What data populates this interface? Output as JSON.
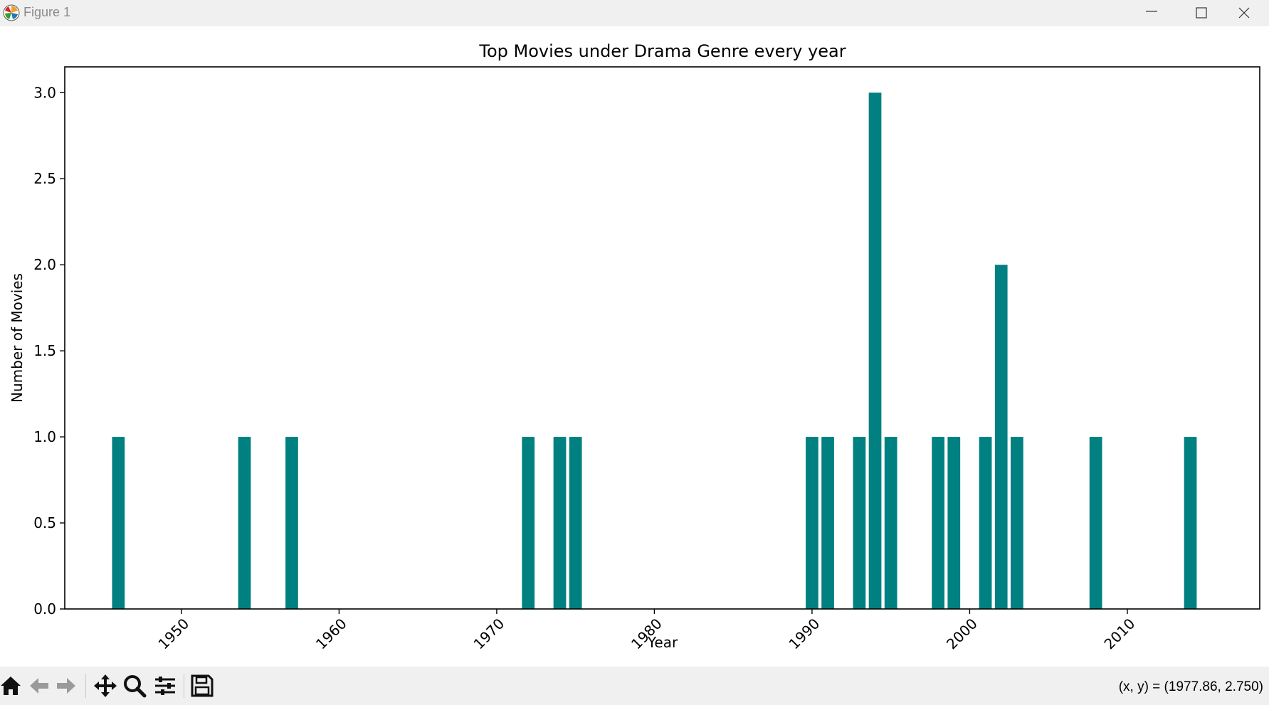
{
  "window": {
    "title": "Figure 1"
  },
  "toolbar": {
    "buttons": [
      {
        "name": "home-icon",
        "tooltip": "Home"
      },
      {
        "name": "back-icon",
        "tooltip": "Back"
      },
      {
        "name": "forward-icon",
        "tooltip": "Forward"
      },
      {
        "name": "pan-icon",
        "tooltip": "Pan"
      },
      {
        "name": "zoom-icon",
        "tooltip": "Zoom"
      },
      {
        "name": "configure-subplots-icon",
        "tooltip": "Subplots"
      },
      {
        "name": "save-icon",
        "tooltip": "Save"
      }
    ],
    "coords_label": "(x, y) = (1977.86, 2.750)"
  },
  "chart_data": {
    "type": "bar",
    "title": "Top Movies under Drama Genre every year",
    "xlabel": "Year",
    "ylabel": "Number of Movies",
    "x": [
      1946,
      1954,
      1957,
      1972,
      1974,
      1975,
      1990,
      1991,
      1993,
      1994,
      1995,
      1998,
      1999,
      2001,
      2002,
      2003,
      2008,
      2014
    ],
    "values": [
      1,
      1,
      1,
      1,
      1,
      1,
      1,
      1,
      1,
      3,
      1,
      1,
      1,
      1,
      2,
      1,
      1,
      1
    ],
    "bar_width": 0.8,
    "bar_color": "#008080",
    "xlim": [
      1942.6,
      2018.4
    ],
    "ylim": [
      0,
      3.15
    ],
    "xticks": [
      1950,
      1960,
      1970,
      1980,
      1990,
      2000,
      2010
    ],
    "xtick_labels": [
      "1950",
      "1960",
      "1970",
      "1980",
      "1990",
      "2000",
      "2010"
    ],
    "yticks": [
      0.0,
      0.5,
      1.0,
      1.5,
      2.0,
      2.5,
      3.0
    ],
    "ytick_labels": [
      "0.0",
      "0.5",
      "1.0",
      "1.5",
      "2.0",
      "2.5",
      "3.0"
    ],
    "xtick_rotation": 45,
    "grid": false,
    "legend": "none"
  }
}
